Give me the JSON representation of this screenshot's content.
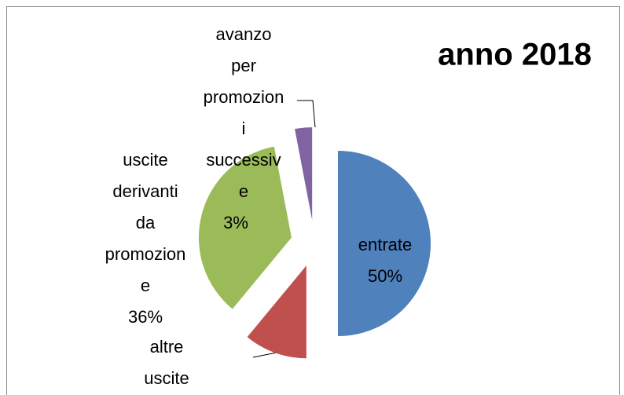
{
  "chart_data": {
    "type": "pie",
    "title": "anno 2018",
    "categories": [
      "entrate",
      "altre uscite",
      "uscite derivanti da promozione",
      "avanzo per promozioni successive"
    ],
    "values": [
      50,
      11,
      36,
      3
    ],
    "value_labels": [
      "50%",
      null,
      "36%",
      "3%"
    ],
    "colors": [
      "#4f81bd",
      "#c0504d",
      "#9bbb59",
      "#8064a2"
    ],
    "exploded": true
  }
}
